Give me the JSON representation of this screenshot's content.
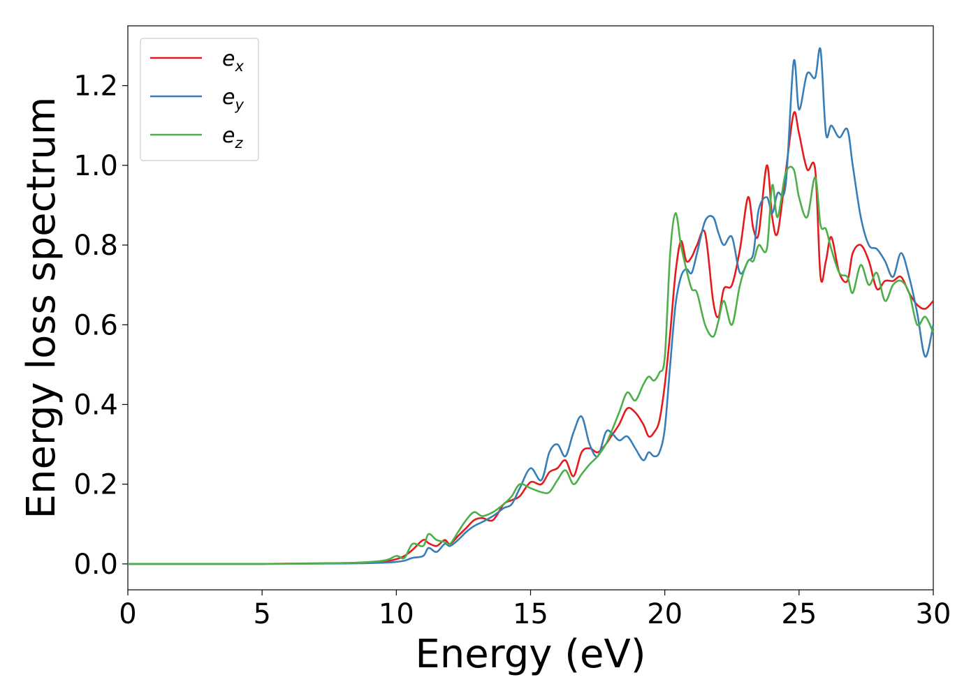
{
  "chart_data": {
    "type": "line",
    "xlabel": "Energy (eV)",
    "ylabel": "Energy loss spectrum",
    "xlim": [
      0,
      30
    ],
    "ylim": [
      -0.065,
      1.35
    ],
    "xticks": [
      "0",
      "5",
      "10",
      "15",
      "20",
      "25",
      "30"
    ],
    "yticks": [
      "0.0",
      "0.2",
      "0.4",
      "0.6",
      "0.8",
      "1.0",
      "1.2"
    ],
    "grid": false,
    "legend_position": "top-left",
    "series": [
      {
        "name": "e",
        "subscript": "x",
        "color": "#e41a1c",
        "x": [
          0,
          5,
          8,
          9.5,
          10,
          10.3,
          10.6,
          11,
          11.2,
          11.5,
          11.8,
          12,
          12.3,
          12.6,
          12.9,
          13.2,
          13.6,
          14,
          14.3,
          14.6,
          15,
          15.4,
          15.7,
          16,
          16.3,
          16.6,
          16.9,
          17.2,
          17.5,
          17.8,
          18,
          18.3,
          18.6,
          18.9,
          19.2,
          19.4,
          19.6,
          19.8,
          20,
          20.2,
          20.4,
          20.6,
          20.8,
          21,
          21.2,
          21.5,
          21.8,
          22,
          22.2,
          22.5,
          22.8,
          23.1,
          23.3,
          23.5,
          23.8,
          24,
          24.2,
          24.5,
          24.8,
          25,
          25.3,
          25.6,
          25.8,
          26,
          26.2,
          26.5,
          26.8,
          27,
          27.3,
          27.6,
          27.9,
          28.2,
          28.5,
          28.8,
          29.1,
          29.4,
          29.7,
          30
        ],
        "y": [
          0,
          0,
          0.002,
          0.006,
          0.012,
          0.02,
          0.035,
          0.06,
          0.052,
          0.045,
          0.06,
          0.05,
          0.07,
          0.09,
          0.11,
          0.115,
          0.11,
          0.15,
          0.16,
          0.17,
          0.205,
          0.2,
          0.23,
          0.24,
          0.26,
          0.22,
          0.28,
          0.29,
          0.28,
          0.3,
          0.32,
          0.35,
          0.39,
          0.38,
          0.35,
          0.32,
          0.33,
          0.36,
          0.45,
          0.58,
          0.73,
          0.81,
          0.76,
          0.77,
          0.8,
          0.83,
          0.66,
          0.62,
          0.69,
          0.7,
          0.79,
          0.92,
          0.84,
          0.83,
          1.0,
          0.87,
          0.83,
          0.98,
          1.13,
          1.08,
          0.99,
          0.99,
          0.72,
          0.76,
          0.82,
          0.73,
          0.71,
          0.78,
          0.8,
          0.76,
          0.69,
          0.71,
          0.71,
          0.72,
          0.68,
          0.65,
          0.64,
          0.66
        ]
      },
      {
        "name": "e",
        "subscript": "y",
        "color": "#377eb8",
        "x": [
          0,
          5,
          8,
          9.5,
          10,
          10.3,
          10.6,
          11,
          11.2,
          11.5,
          11.8,
          12,
          12.3,
          12.6,
          12.9,
          13.2,
          13.6,
          14,
          14.3,
          14.6,
          15,
          15.4,
          15.7,
          16,
          16.3,
          16.6,
          16.9,
          17.2,
          17.5,
          17.8,
          18,
          18.3,
          18.6,
          18.9,
          19.2,
          19.4,
          19.6,
          19.8,
          20,
          20.2,
          20.4,
          20.6,
          20.8,
          21,
          21.2,
          21.5,
          21.8,
          22,
          22.2,
          22.5,
          22.8,
          23.1,
          23.3,
          23.5,
          23.8,
          24,
          24.2,
          24.5,
          24.8,
          25,
          25.3,
          25.6,
          25.8,
          26,
          26.2,
          26.5,
          26.8,
          27,
          27.3,
          27.6,
          27.9,
          28.2,
          28.5,
          28.8,
          29.1,
          29.4,
          29.7,
          30
        ],
        "y": [
          0,
          0,
          0.001,
          0.003,
          0.005,
          0.008,
          0.015,
          0.02,
          0.04,
          0.03,
          0.05,
          0.045,
          0.06,
          0.08,
          0.095,
          0.105,
          0.12,
          0.14,
          0.15,
          0.19,
          0.24,
          0.21,
          0.28,
          0.3,
          0.27,
          0.33,
          0.37,
          0.3,
          0.27,
          0.33,
          0.33,
          0.31,
          0.32,
          0.29,
          0.26,
          0.28,
          0.27,
          0.28,
          0.34,
          0.5,
          0.65,
          0.72,
          0.74,
          0.73,
          0.78,
          0.86,
          0.87,
          0.83,
          0.8,
          0.82,
          0.73,
          0.76,
          0.78,
          0.89,
          0.92,
          0.88,
          0.93,
          0.95,
          1.26,
          1.14,
          1.23,
          1.22,
          1.29,
          1.08,
          1.1,
          1.07,
          1.09,
          1.0,
          0.87,
          0.8,
          0.79,
          0.76,
          0.72,
          0.78,
          0.72,
          0.63,
          0.52,
          0.6
        ]
      },
      {
        "name": "e",
        "subscript": "z",
        "color": "#4daf4a",
        "x": [
          0,
          5,
          8,
          9.5,
          10,
          10.3,
          10.6,
          11,
          11.2,
          11.5,
          11.8,
          12,
          12.3,
          12.6,
          12.9,
          13.2,
          13.6,
          14,
          14.3,
          14.6,
          15,
          15.4,
          15.7,
          16,
          16.3,
          16.6,
          16.9,
          17.2,
          17.5,
          17.8,
          18,
          18.3,
          18.6,
          18.9,
          19.2,
          19.4,
          19.6,
          19.8,
          20,
          20.2,
          20.4,
          20.6,
          20.8,
          21,
          21.2,
          21.5,
          21.8,
          22,
          22.2,
          22.5,
          22.8,
          23.1,
          23.3,
          23.5,
          23.8,
          24,
          24.2,
          24.5,
          24.8,
          25,
          25.3,
          25.6,
          25.8,
          26,
          26.2,
          26.5,
          26.8,
          27,
          27.3,
          27.6,
          27.9,
          28.2,
          28.5,
          28.8,
          29.1,
          29.4,
          29.7,
          30
        ],
        "y": [
          0,
          0,
          0.002,
          0.008,
          0.02,
          0.015,
          0.05,
          0.045,
          0.075,
          0.06,
          0.055,
          0.05,
          0.08,
          0.11,
          0.13,
          0.12,
          0.13,
          0.15,
          0.17,
          0.2,
          0.19,
          0.18,
          0.18,
          0.21,
          0.235,
          0.2,
          0.225,
          0.25,
          0.27,
          0.3,
          0.33,
          0.38,
          0.43,
          0.41,
          0.45,
          0.47,
          0.46,
          0.48,
          0.52,
          0.78,
          0.88,
          0.8,
          0.74,
          0.69,
          0.68,
          0.6,
          0.57,
          0.61,
          0.66,
          0.6,
          0.7,
          0.76,
          0.76,
          0.8,
          0.79,
          0.95,
          0.87,
          0.98,
          0.99,
          0.92,
          0.87,
          0.97,
          0.85,
          0.84,
          0.79,
          0.73,
          0.72,
          0.68,
          0.75,
          0.7,
          0.73,
          0.66,
          0.7,
          0.71,
          0.68,
          0.6,
          0.62,
          0.58
        ]
      }
    ]
  }
}
